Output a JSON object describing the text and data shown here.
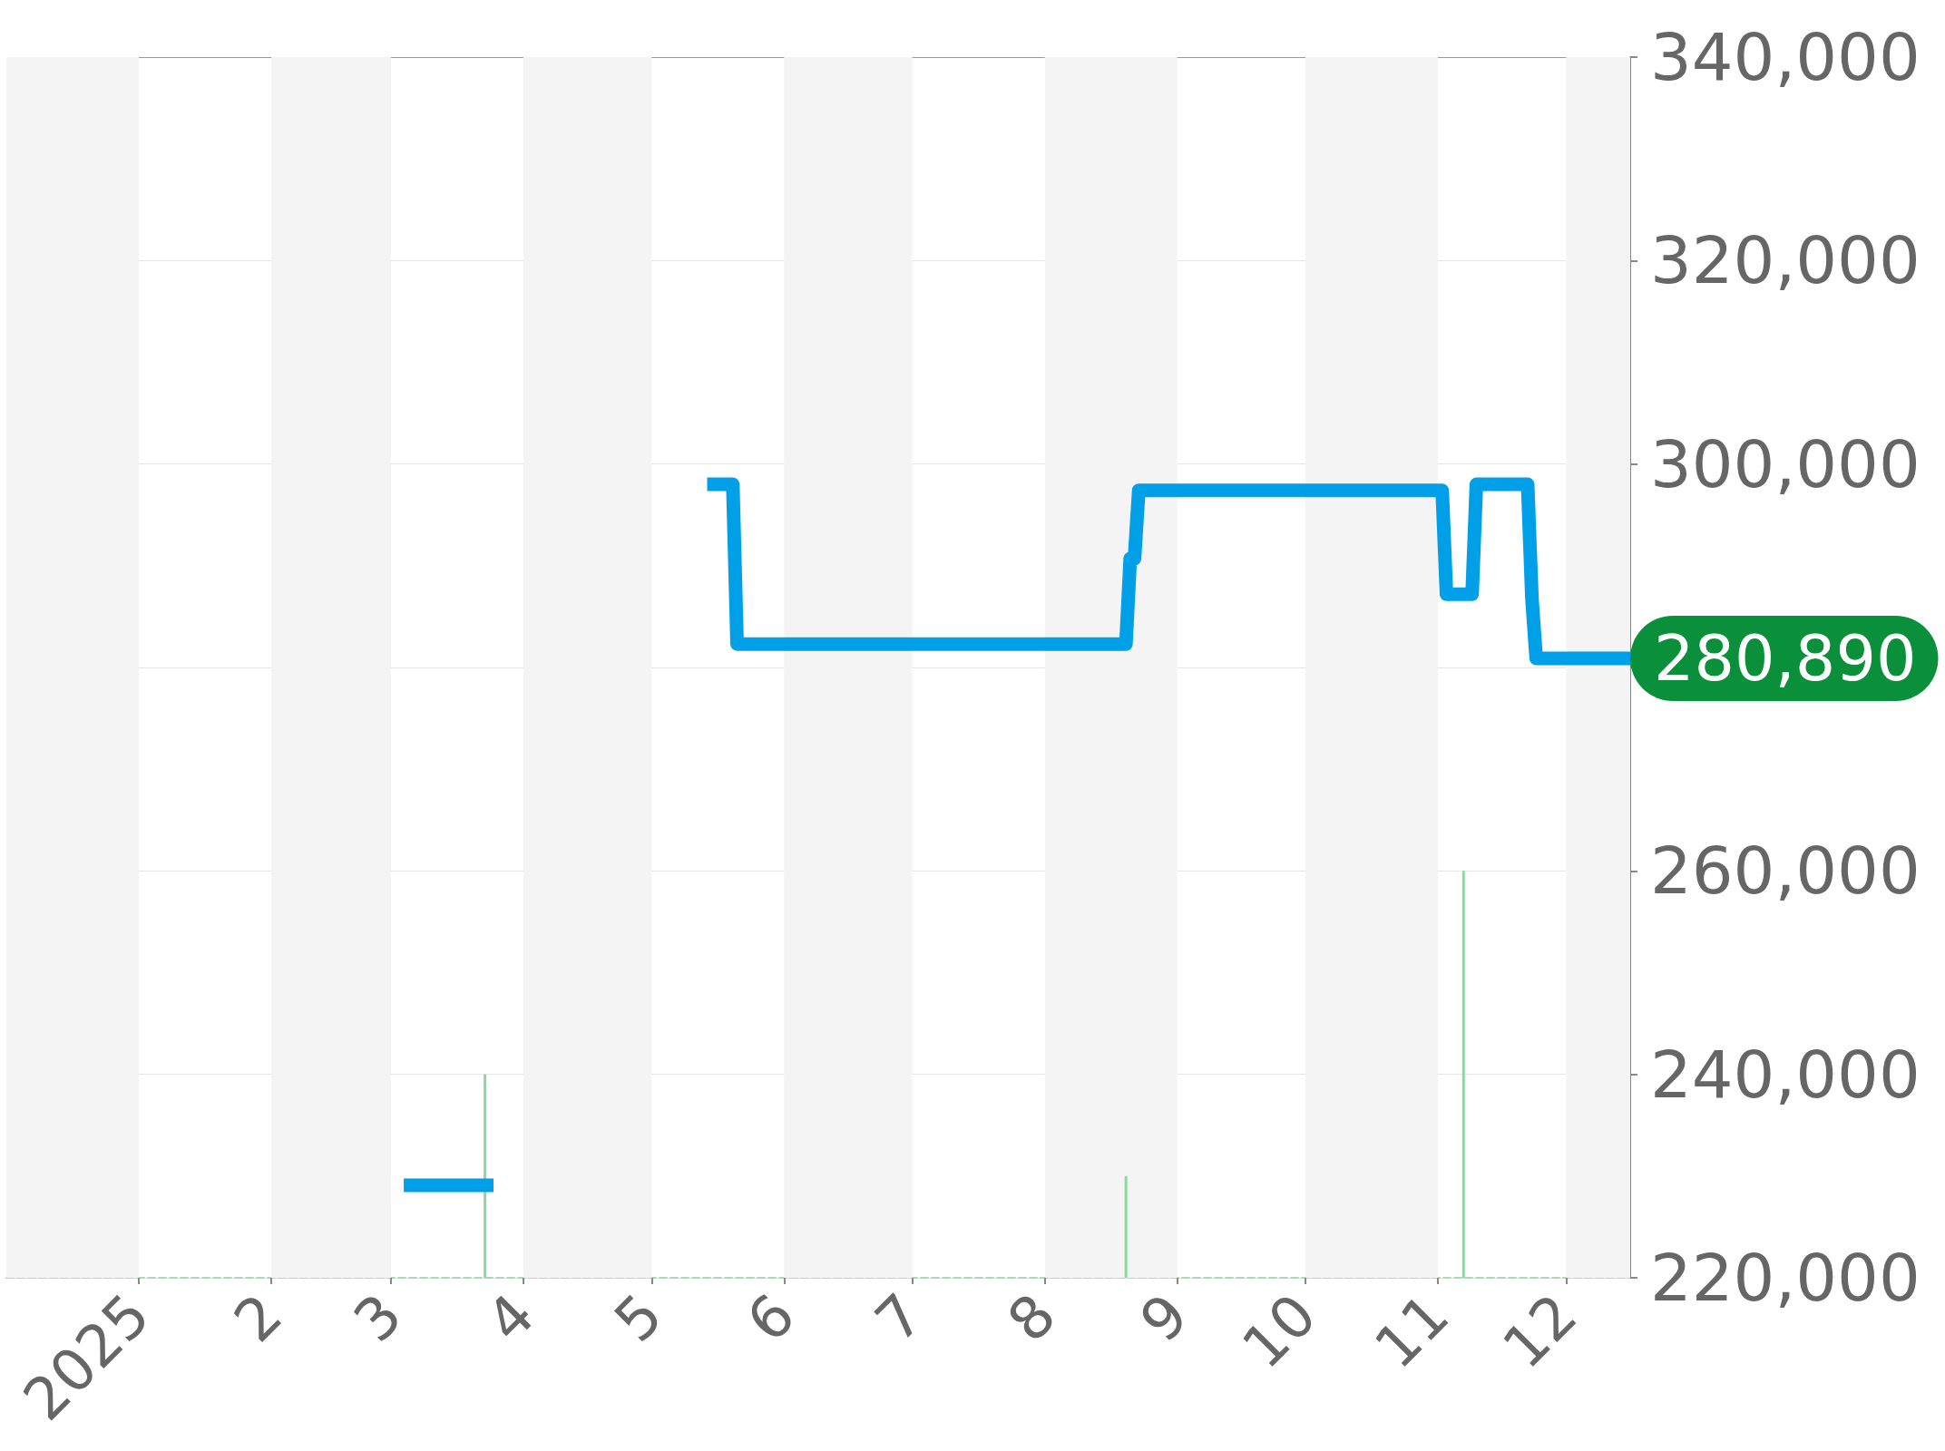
{
  "chart_data": {
    "type": "line",
    "xlim": [
      "2024-12-01",
      "2025-12-16"
    ],
    "xticks": [
      {
        "value": "2025-01-01",
        "label": "2025"
      },
      {
        "value": "2025-02-01",
        "label": "2"
      },
      {
        "value": "2025-03-01",
        "label": "3"
      },
      {
        "value": "2025-04-01",
        "label": "4"
      },
      {
        "value": "2025-05-01",
        "label": "5"
      },
      {
        "value": "2025-06-01",
        "label": "6"
      },
      {
        "value": "2025-07-01",
        "label": "7"
      },
      {
        "value": "2025-08-01",
        "label": "8"
      },
      {
        "value": "2025-09-01",
        "label": "9"
      },
      {
        "value": "2025-10-01",
        "label": "10"
      },
      {
        "value": "2025-11-01",
        "label": "11"
      },
      {
        "value": "2025-12-01",
        "label": "12"
      }
    ],
    "ylim": [
      220000,
      340000
    ],
    "yticks": [
      {
        "value": 220000,
        "label": "220,000"
      },
      {
        "value": 240000,
        "label": "240,000"
      },
      {
        "value": 260000,
        "label": "260,000"
      },
      {
        "value": 280000,
        "label": null
      },
      {
        "value": 300000,
        "label": "300,000"
      },
      {
        "value": 320000,
        "label": "320,000"
      },
      {
        "value": 340000,
        "label": "340,000"
      }
    ],
    "grid": "y",
    "series": [
      {
        "color": "#00a0e9",
        "x": [
          "2025-03-04",
          "2025-03-25"
        ],
        "values": [
          229100,
          229100
        ]
      },
      {
        "color": "#00a0e9",
        "x": [
          "2025-05-14",
          "2025-05-20",
          "2025-05-21",
          "2025-08-20",
          "2025-08-21",
          "2025-08-22",
          "2025-08-23",
          "2025-11-02",
          "2025-11-03",
          "2025-11-09",
          "2025-11-10",
          "2025-11-22",
          "2025-11-23",
          "2025-11-24",
          "2025-12-16"
        ],
        "values": [
          298000,
          298000,
          282300,
          282300,
          290700,
          290700,
          297400,
          297400,
          287200,
          287200,
          298000,
          298000,
          286800,
          280890,
          280890
        ]
      },
      {
        "type": "bar",
        "color": "#8ed8a0",
        "x": [
          "2025-03-23",
          "2025-08-20",
          "2025-11-07"
        ],
        "values": [
          240000,
          230000,
          260000
        ]
      }
    ],
    "bands": [
      {
        "axis": "x",
        "from": "2024-12-01",
        "to": "2025-01-01",
        "color": "#f4f4f4"
      },
      {
        "axis": "x",
        "from": "2025-02-01",
        "to": "2025-03-01",
        "color": "#f4f4f4"
      },
      {
        "axis": "x",
        "from": "2025-04-01",
        "to": "2025-05-01",
        "color": "#f4f4f4"
      },
      {
        "axis": "x",
        "from": "2025-06-01",
        "to": "2025-07-01",
        "color": "#f4f4f4"
      },
      {
        "axis": "x",
        "from": "2025-08-01",
        "to": "2025-09-01",
        "color": "#f4f4f4"
      },
      {
        "axis": "x",
        "from": "2025-10-01",
        "to": "2025-11-01",
        "color": "#f4f4f4"
      },
      {
        "axis": "x",
        "from": "2025-12-01",
        "to": "2025-12-16",
        "color": "#f4f4f4"
      }
    ],
    "annotations": [
      {
        "text": "280,890",
        "x": "2025-12-16",
        "y": 280890
      }
    ]
  }
}
